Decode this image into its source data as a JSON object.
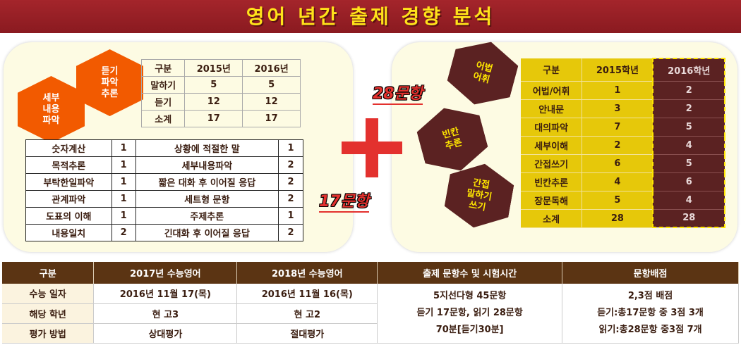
{
  "title": "영어 년간 출제 경향 분석",
  "left": {
    "hexagons": [
      "세부\n내용\n파악",
      "듣기\n파악\n추론"
    ],
    "summary_table": {
      "headers": [
        "구분",
        "2015년",
        "2016년"
      ],
      "rows": [
        [
          "말하기",
          "5",
          "5"
        ],
        [
          "듣기",
          "12",
          "12"
        ],
        [
          "소계",
          "17",
          "17"
        ]
      ]
    },
    "detail_table": [
      [
        "숫자계산",
        "1",
        "상황에 적절한 말",
        "1"
      ],
      [
        "목적추론",
        "1",
        "세부내용파악",
        "2"
      ],
      [
        "부탁한일파악",
        "1",
        "짧은 대화 후 이어질 응답",
        "2"
      ],
      [
        "관계파악",
        "1",
        "세트형 문항",
        "2"
      ],
      [
        "도표의 이해",
        "1",
        "주제추론",
        "1"
      ],
      [
        "내용일치",
        "2",
        "긴대화 후 이어질 응답",
        "2"
      ]
    ],
    "count": "17문항"
  },
  "right": {
    "count": "28문항",
    "hexagons": [
      "어법\n어휘",
      "빈칸\n추론",
      "간접\n말하기\n쓰기"
    ],
    "table": {
      "headers": [
        "구분",
        "2015학년",
        "2016학년"
      ],
      "rows": [
        [
          "어법/어휘",
          "1",
          "2"
        ],
        [
          "안내문",
          "3",
          "2"
        ],
        [
          "대의파악",
          "7",
          "5"
        ],
        [
          "세부이해",
          "2",
          "4"
        ],
        [
          "간접쓰기",
          "6",
          "5"
        ],
        [
          "빈칸추론",
          "4",
          "6"
        ],
        [
          "장문독해",
          "5",
          "4"
        ],
        [
          "소계",
          "28",
          "28"
        ]
      ]
    }
  },
  "bottom": {
    "headers": [
      "구분",
      "2017년 수능영어",
      "2018년 수능영어",
      "출제 문항수 및 시험시간",
      "문항배점"
    ],
    "rows": [
      [
        "수능 일자",
        "2016년 11월 17(목)",
        "2016년 11월 16(목)"
      ],
      [
        "해당 학년",
        "현 고3",
        "현 고2"
      ],
      [
        "평가 방법",
        "상대평가",
        "절대평가"
      ]
    ],
    "questions": [
      "5지선다형 45문항",
      "듣기 17문항, 읽기 28문항",
      "70분[듣기30분]"
    ],
    "scoring": [
      "2,3점 배점",
      "듣기:총17문항 중 3점 3개",
      "읽기:총28문항 중3점 7개"
    ]
  },
  "colors": {
    "banner": "#8a1a20",
    "title": "#ffe21a",
    "orange": "#f25a00",
    "maroon": "#5b2222",
    "gold": "#e6c80a",
    "plus": "#e3312e"
  }
}
